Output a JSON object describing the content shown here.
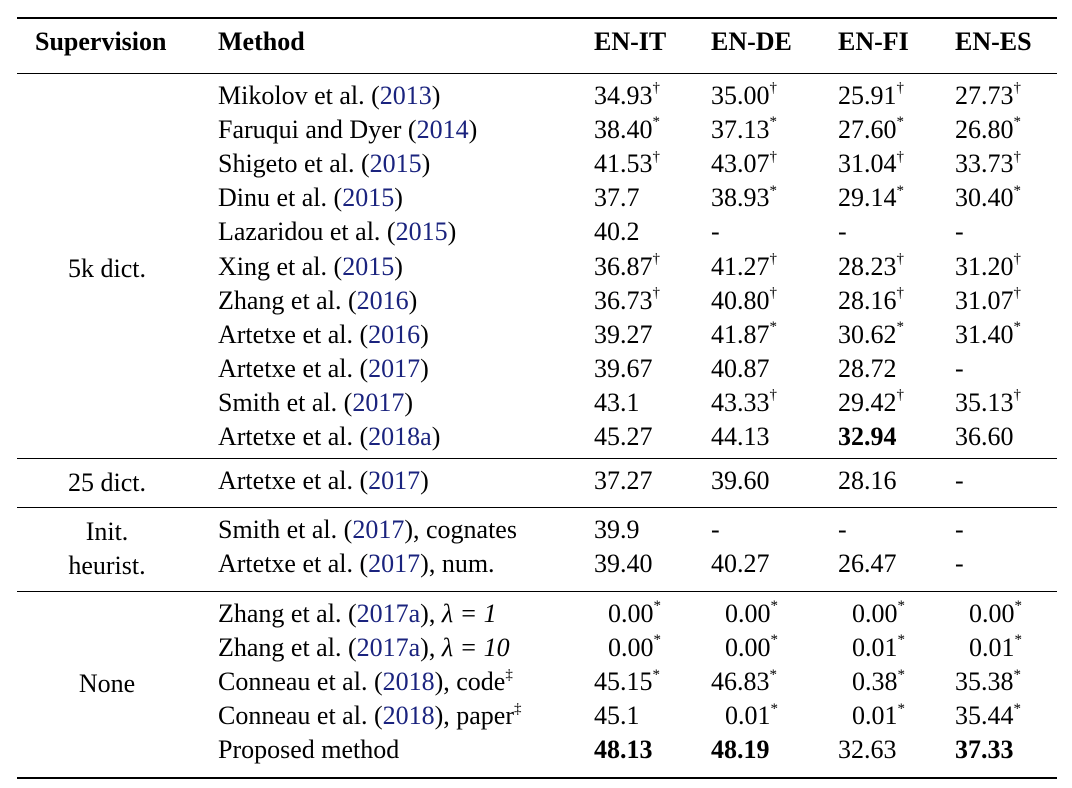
{
  "columns": [
    "Supervision",
    "Method",
    "EN-IT",
    "EN-DE",
    "EN-FI",
    "EN-ES"
  ],
  "groups": [
    {
      "supervision": [
        "5k dict."
      ],
      "rows": [
        {
          "method": [
            {
              "t": "Mikolov et al. ("
            },
            {
              "t": "2013",
              "c": 1
            },
            {
              "t": ")"
            }
          ],
          "name": "Mikolov et al. (2013)",
          "cells": [
            {
              "v": "34.93",
              "s": "†"
            },
            {
              "v": "35.00",
              "s": "†"
            },
            {
              "v": "25.91",
              "s": "†"
            },
            {
              "v": "27.73",
              "s": "†"
            }
          ]
        },
        {
          "method": [
            {
              "t": "Faruqui and Dyer ("
            },
            {
              "t": "2014",
              "c": 1
            },
            {
              "t": ")"
            }
          ],
          "name": "Faruqui and Dyer (2014)",
          "cells": [
            {
              "v": "38.40",
              "s": "*"
            },
            {
              "v": "37.13",
              "s": "*"
            },
            {
              "v": "27.60",
              "s": "*"
            },
            {
              "v": "26.80",
              "s": "*"
            }
          ]
        },
        {
          "method": [
            {
              "t": "Shigeto et al. ("
            },
            {
              "t": "2015",
              "c": 1
            },
            {
              "t": ")"
            }
          ],
          "name": "Shigeto et al. (2015)",
          "cells": [
            {
              "v": "41.53",
              "s": "†"
            },
            {
              "v": "43.07",
              "s": "†"
            },
            {
              "v": "31.04",
              "s": "†"
            },
            {
              "v": "33.73",
              "s": "†"
            }
          ]
        },
        {
          "method": [
            {
              "t": "Dinu et al. ("
            },
            {
              "t": "2015",
              "c": 1
            },
            {
              "t": ")"
            }
          ],
          "name": "Dinu et al. (2015)",
          "cells": [
            {
              "v": "37.7"
            },
            {
              "v": "38.93",
              "s": "*"
            },
            {
              "v": "29.14",
              "s": "*"
            },
            {
              "v": "30.40",
              "s": "*"
            }
          ]
        },
        {
          "method": [
            {
              "t": "Lazaridou et al. ("
            },
            {
              "t": "2015",
              "c": 1
            },
            {
              "t": ")"
            }
          ],
          "name": "Lazaridou et al. (2015)",
          "cells": [
            {
              "v": "40.2"
            },
            {
              "v": "-"
            },
            {
              "v": "-"
            },
            {
              "v": "-"
            }
          ]
        },
        {
          "method": [
            {
              "t": "Xing et al. ("
            },
            {
              "t": "2015",
              "c": 1
            },
            {
              "t": ")"
            }
          ],
          "name": "Xing et al. (2015)",
          "cells": [
            {
              "v": "36.87",
              "s": "†"
            },
            {
              "v": "41.27",
              "s": "†"
            },
            {
              "v": "28.23",
              "s": "†"
            },
            {
              "v": "31.20",
              "s": "†"
            }
          ]
        },
        {
          "method": [
            {
              "t": "Zhang et al. ("
            },
            {
              "t": "2016",
              "c": 1
            },
            {
              "t": ")"
            }
          ],
          "name": "Zhang et al. (2016)",
          "cells": [
            {
              "v": "36.73",
              "s": "†"
            },
            {
              "v": "40.80",
              "s": "†"
            },
            {
              "v": "28.16",
              "s": "†"
            },
            {
              "v": "31.07",
              "s": "†"
            }
          ]
        },
        {
          "method": [
            {
              "t": "Artetxe et al. ("
            },
            {
              "t": "2016",
              "c": 1
            },
            {
              "t": ")"
            }
          ],
          "name": "Artetxe et al. (2016)",
          "cells": [
            {
              "v": "39.27"
            },
            {
              "v": "41.87",
              "s": "*"
            },
            {
              "v": "30.62",
              "s": "*"
            },
            {
              "v": "31.40",
              "s": "*"
            }
          ]
        },
        {
          "method": [
            {
              "t": "Artetxe et al. ("
            },
            {
              "t": "2017",
              "c": 1
            },
            {
              "t": ")"
            }
          ],
          "name": "Artetxe et al. (2017)",
          "cells": [
            {
              "v": "39.67"
            },
            {
              "v": "40.87"
            },
            {
              "v": "28.72"
            },
            {
              "v": "-"
            }
          ]
        },
        {
          "method": [
            {
              "t": "Smith et al. ("
            },
            {
              "t": "2017",
              "c": 1
            },
            {
              "t": ")"
            }
          ],
          "name": "Smith et al. (2017)",
          "cells": [
            {
              "v": "43.1"
            },
            {
              "v": "43.33",
              "s": "†"
            },
            {
              "v": "29.42",
              "s": "†"
            },
            {
              "v": "35.13",
              "s": "†"
            }
          ]
        },
        {
          "method": [
            {
              "t": "Artetxe et al. ("
            },
            {
              "t": "2018a",
              "c": 1
            },
            {
              "t": ")"
            }
          ],
          "name": "Artetxe et al. (2018a)",
          "cells": [
            {
              "v": "45.27"
            },
            {
              "v": "44.13"
            },
            {
              "v": "32.94",
              "b": 1
            },
            {
              "v": "36.60"
            }
          ]
        }
      ]
    },
    {
      "supervision": [
        "25 dict."
      ],
      "rows": [
        {
          "method": [
            {
              "t": "Artetxe et al. ("
            },
            {
              "t": "2017",
              "c": 1
            },
            {
              "t": ")"
            }
          ],
          "name": "Artetxe et al. (2017)",
          "cells": [
            {
              "v": "37.27"
            },
            {
              "v": "39.60"
            },
            {
              "v": "28.16"
            },
            {
              "v": "-"
            }
          ]
        }
      ]
    },
    {
      "supervision": [
        "Init.",
        "heurist."
      ],
      "rows": [
        {
          "method": [
            {
              "t": "Smith et al. ("
            },
            {
              "t": "2017",
              "c": 1
            },
            {
              "t": "), cognates"
            }
          ],
          "name": "Smith et al. (2017), cognates",
          "cells": [
            {
              "v": "39.9"
            },
            {
              "v": "-"
            },
            {
              "v": "-"
            },
            {
              "v": "-"
            }
          ]
        },
        {
          "method": [
            {
              "t": "Artetxe et al. ("
            },
            {
              "t": "2017",
              "c": 1
            },
            {
              "t": "), num."
            }
          ],
          "name": "Artetxe et al. (2017), num.",
          "cells": [
            {
              "v": "39.40"
            },
            {
              "v": "40.27"
            },
            {
              "v": "26.47"
            },
            {
              "v": "-"
            }
          ]
        }
      ]
    },
    {
      "supervision": [
        "None"
      ],
      "rows": [
        {
          "method": [
            {
              "t": "Zhang et al. ("
            },
            {
              "t": "2017a",
              "c": 1
            },
            {
              "t": "), "
            },
            {
              "t": "λ = 1",
              "m": 1
            }
          ],
          "name": "Zhang et al. (2017a), λ = 1",
          "cells": [
            {
              "v": "0.00",
              "s": "*"
            },
            {
              "v": "0.00",
              "s": "*"
            },
            {
              "v": "0.00",
              "s": "*"
            },
            {
              "v": "0.00",
              "s": "*"
            }
          ]
        },
        {
          "method": [
            {
              "t": "Zhang et al. ("
            },
            {
              "t": "2017a",
              "c": 1
            },
            {
              "t": "), "
            },
            {
              "t": "λ = 10",
              "m": 1
            }
          ],
          "name": "Zhang et al. (2017a), λ = 10",
          "cells": [
            {
              "v": "0.00",
              "s": "*"
            },
            {
              "v": "0.00",
              "s": "*"
            },
            {
              "v": "0.01",
              "s": "*"
            },
            {
              "v": "0.01",
              "s": "*"
            }
          ]
        },
        {
          "method": [
            {
              "t": "Conneau et al. ("
            },
            {
              "t": "2018",
              "c": 1
            },
            {
              "t": "), code"
            },
            {
              "t": "‡",
              "sup": 1
            }
          ],
          "name": "Conneau et al. (2018), code‡",
          "cells": [
            {
              "v": "45.15",
              "s": "*"
            },
            {
              "v": "46.83",
              "s": "*"
            },
            {
              "v": "0.38",
              "s": "*"
            },
            {
              "v": "35.38",
              "s": "*"
            }
          ]
        },
        {
          "method": [
            {
              "t": "Conneau et al. ("
            },
            {
              "t": "2018",
              "c": 1
            },
            {
              "t": "), paper"
            },
            {
              "t": "‡",
              "sup": 1
            }
          ],
          "name": "Conneau et al. (2018), paper‡",
          "cells": [
            {
              "v": "45.1"
            },
            {
              "v": "0.01",
              "s": "*"
            },
            {
              "v": "0.01",
              "s": "*"
            },
            {
              "v": "35.44",
              "s": "*"
            }
          ]
        },
        {
          "method": [
            {
              "t": "Proposed method"
            }
          ],
          "name": "Proposed method",
          "cells": [
            {
              "v": "48.13",
              "b": 1
            },
            {
              "v": "48.19",
              "b": 1
            },
            {
              "v": "32.63"
            },
            {
              "v": "37.33",
              "b": 1
            }
          ]
        }
      ]
    }
  ]
}
